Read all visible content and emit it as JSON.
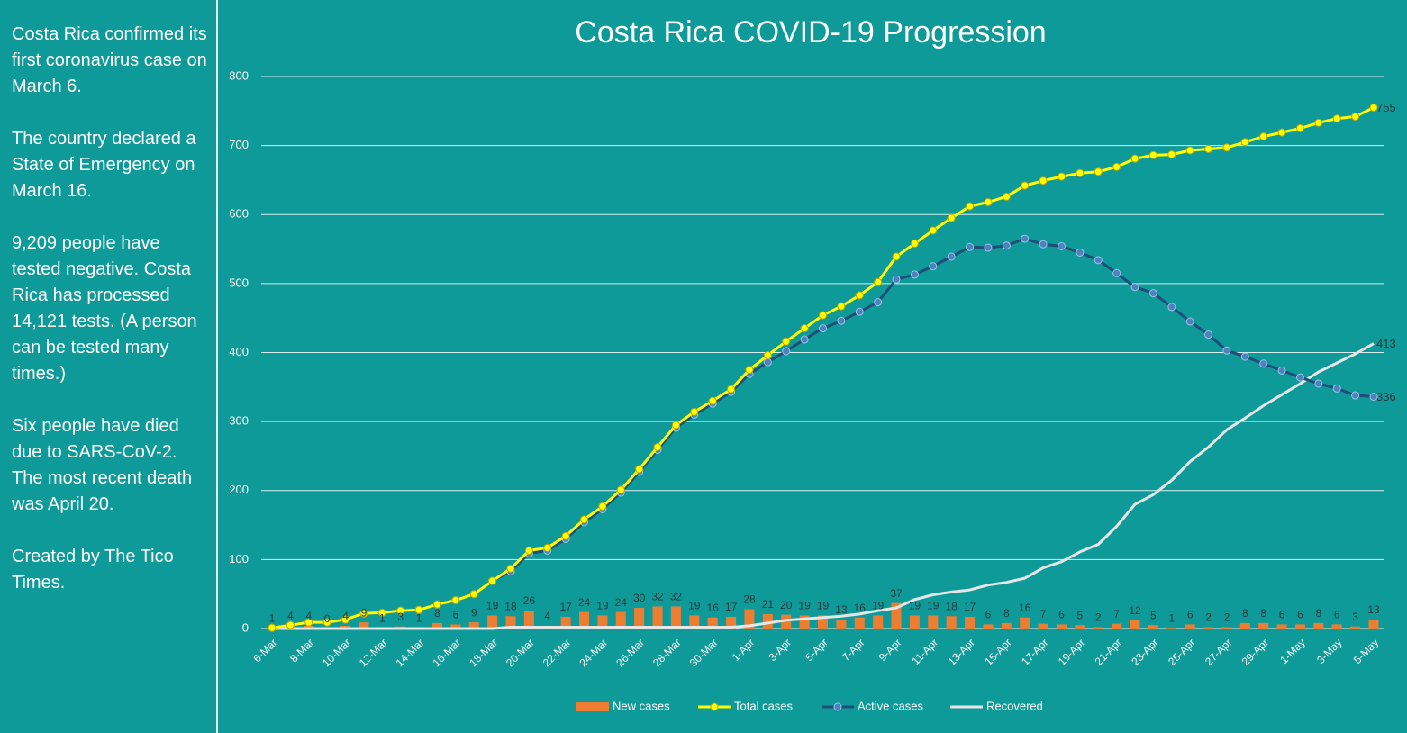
{
  "sidebar": {
    "paragraphs": [
      "Costa Rica confirmed its first coronavirus case on March 6.",
      "The country declared a State of Emergency on March 16.",
      "9,209 people have tested negative. Costa Rica has processed 14,121 tests. (A person can be tested many times.)",
      "Six people have died due to SARS-CoV-2. The most recent death was April 20.",
      "Created by The Tico Times."
    ]
  },
  "chart_data": {
    "type": "combo",
    "title": "Costa Rica COVID-19 Progression",
    "categories": [
      "6-Mar",
      null,
      "8-Mar",
      null,
      "10-Mar",
      null,
      "12-Mar",
      null,
      "14-Mar",
      null,
      "16-Mar",
      null,
      "18-Mar",
      null,
      "20-Mar",
      null,
      "22-Mar",
      null,
      "24-Mar",
      null,
      "26-Mar",
      null,
      "28-Mar",
      null,
      "30-Mar",
      null,
      "1-Apr",
      null,
      "3-Apr",
      null,
      "5-Apr",
      null,
      "7-Apr",
      null,
      "9-Apr",
      null,
      "11-Apr",
      null,
      "13-Apr",
      null,
      "15-Apr",
      null,
      "17-Apr",
      null,
      "19-Apr",
      null,
      "21-Apr",
      null,
      "23-Apr",
      null,
      "25-Apr",
      null,
      "27-Apr",
      null,
      "29-Apr",
      null,
      "1-May",
      null,
      "3-May",
      null,
      "5-May"
    ],
    "ylim": [
      0,
      800
    ],
    "yticks": [
      0,
      100,
      200,
      300,
      400,
      500,
      600,
      700,
      800
    ],
    "grid": true,
    "legend": "bottom",
    "series": [
      {
        "name": "New cases",
        "type": "bar",
        "color": "#ed7d31",
        "values": [
          1,
          4,
          4,
          0,
          4,
          9,
          1,
          3,
          1,
          8,
          6,
          9,
          19,
          18,
          26,
          4,
          17,
          24,
          19,
          24,
          30,
          32,
          32,
          19,
          16,
          17,
          28,
          21,
          20,
          19,
          19,
          13,
          16,
          19,
          37,
          19,
          19,
          18,
          17,
          6,
          8,
          16,
          7,
          6,
          5,
          2,
          7,
          12,
          5,
          1,
          6,
          2,
          2,
          8,
          8,
          6,
          6,
          8,
          6,
          3,
          13
        ]
      },
      {
        "name": "Total cases",
        "type": "line",
        "color": "#ffff00",
        "values": [
          1,
          5,
          9,
          9,
          13,
          22,
          23,
          26,
          27,
          35,
          41,
          50,
          69,
          87,
          113,
          117,
          134,
          158,
          177,
          201,
          231,
          263,
          295,
          314,
          330,
          347,
          375,
          396,
          416,
          435,
          454,
          467,
          483,
          502,
          539,
          558,
          577,
          595,
          612,
          618,
          626,
          642,
          649,
          655,
          660,
          662,
          669,
          681,
          686,
          687,
          693,
          695,
          697,
          705,
          713,
          719,
          725,
          733,
          739,
          742,
          755
        ]
      },
      {
        "name": "Active cases",
        "type": "line",
        "color": "#1f4e79",
        "values": [
          1,
          5,
          9,
          9,
          13,
          22,
          23,
          26,
          27,
          35,
          41,
          50,
          69,
          83,
          109,
          113,
          130,
          154,
          173,
          197,
          227,
          259,
          291,
          310,
          326,
          343,
          369,
          386,
          402,
          419,
          435,
          446,
          459,
          473,
          506,
          513,
          525,
          539,
          553,
          552,
          555,
          565,
          557,
          554,
          545,
          534,
          515,
          495,
          486,
          466,
          445,
          426,
          403,
          394,
          384,
          374,
          364,
          355,
          348,
          338,
          336
        ]
      },
      {
        "name": "Recovered",
        "type": "line",
        "color": "#e6e6e6",
        "values": [
          0,
          0,
          0,
          0,
          0,
          0,
          0,
          0,
          0,
          0,
          0,
          0,
          0,
          2,
          2,
          2,
          2,
          2,
          2,
          2,
          2,
          2,
          2,
          2,
          2,
          2,
          4,
          8,
          12,
          14,
          16,
          18,
          21,
          26,
          30,
          42,
          49,
          53,
          56,
          63,
          67,
          73,
          88,
          97,
          111,
          122,
          148,
          180,
          194,
          215,
          242,
          263,
          288,
          305,
          323,
          339,
          355,
          372,
          385,
          398,
          413
        ]
      }
    ]
  }
}
